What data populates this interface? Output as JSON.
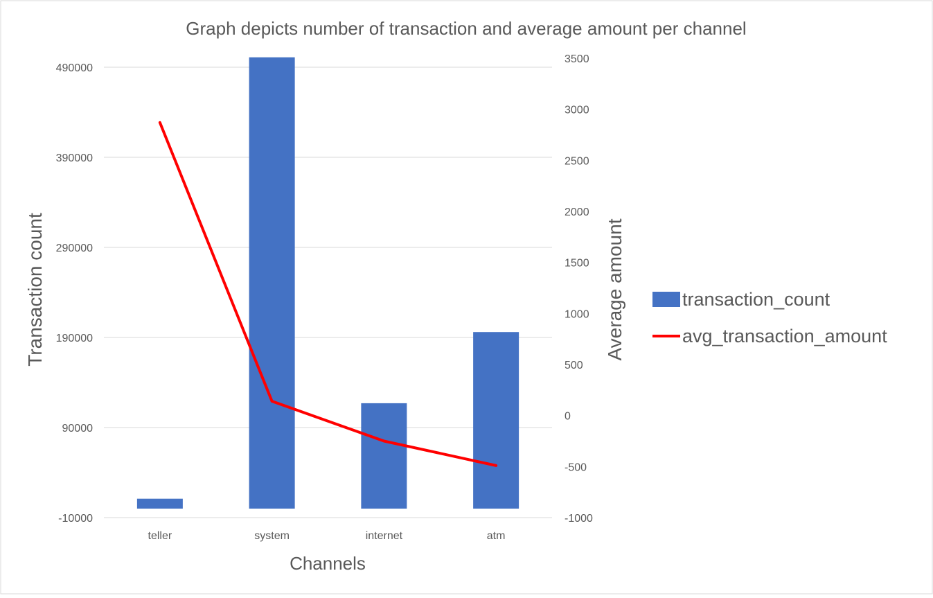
{
  "chart_data": {
    "type": "bar",
    "title": "Graph depicts  number of transaction and average amount per channel",
    "xlabel": "Channels",
    "ylabel": "Transaction count",
    "y2label": "Average amount",
    "categories": [
      "teller",
      "system",
      "internet",
      "atm"
    ],
    "ylim": [
      -10000,
      490000
    ],
    "yticks": [
      "-10000",
      "90000",
      "190000",
      "290000",
      "390000",
      "490000"
    ],
    "y2lim": [
      -1000,
      3500
    ],
    "y2ticks": [
      "-1000",
      "-500",
      "0",
      "500",
      "1000",
      "1500",
      "2000",
      "2500",
      "3000",
      "3500"
    ],
    "series": [
      {
        "name": "transaction_count",
        "type": "bar",
        "axis": "left",
        "color": "#4472C4",
        "values": [
          11000,
          501000,
          117000,
          196000
        ]
      },
      {
        "name": "avg_transaction_amount",
        "type": "line",
        "axis": "right",
        "color": "#FF0000",
        "values": [
          2870,
          140,
          -250,
          -490
        ]
      }
    ],
    "grid": true,
    "legend": "right"
  }
}
